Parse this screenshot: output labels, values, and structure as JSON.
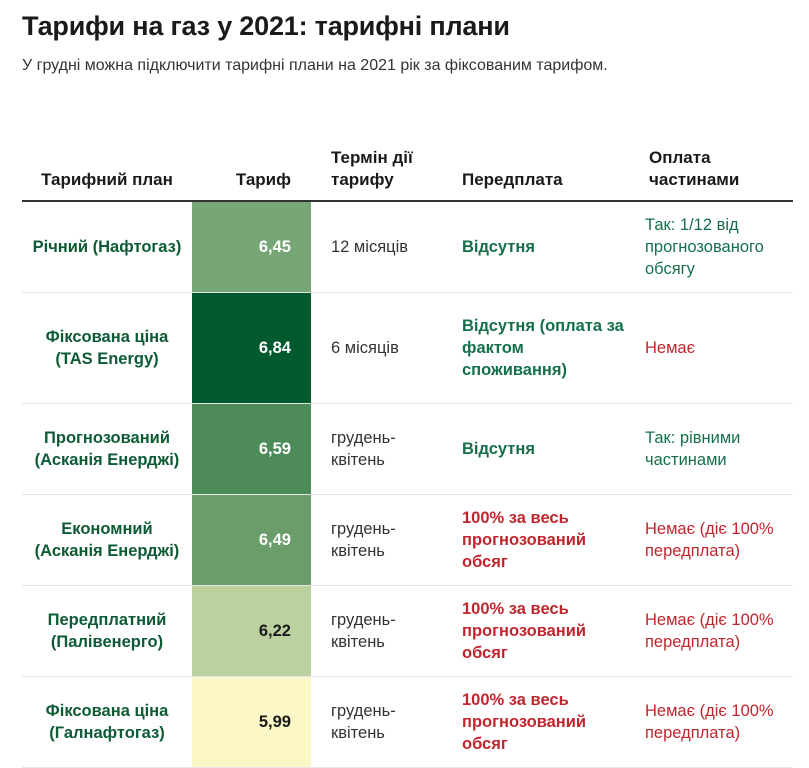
{
  "title": "Тарифи на газ у 2021: тарифні плани",
  "subtitle": "У грудні можна підключити тарифні плани на 2021 рік за фіксованим тарифом.",
  "columns": {
    "plan": "Тарифний план",
    "tariff": "Тариф",
    "term": "Термін дії тарифу",
    "prepayment": "Передплата",
    "installments": "Оплата частинами"
  },
  "colors": {
    "plan_text": "#0d5b34",
    "positive": "#15704a",
    "negative": "#c0262d"
  },
  "rows": [
    {
      "plan": "Річний (Нафтогаз)",
      "tariff": "6,45",
      "tariff_bg": "#77a677",
      "tariff_fg": "#ffffff",
      "term": "12 місяців",
      "prepayment": "Відсутня",
      "prepayment_status": "green",
      "installments": "Так: 1/12 від прогнозованого обсягу",
      "installments_status": "green",
      "height": 91
    },
    {
      "plan": "Фіксована ціна (TAS Energy)",
      "tariff": "6,84",
      "tariff_bg": "#005a2e",
      "tariff_fg": "#ffffff",
      "term": "6 місяців",
      "prepayment": "Відсутня (оплата за фактом споживання)",
      "prepayment_status": "green",
      "installments": "Немає",
      "installments_status": "red",
      "height": 111
    },
    {
      "plan": "Прогнозований (Асканія Енерджі)",
      "tariff": "6,59",
      "tariff_bg": "#4d8b59",
      "tariff_fg": "#ffffff",
      "term": "грудень-квітень",
      "prepayment": "Відсутня",
      "prepayment_status": "green",
      "installments": "Так: рівними частинами",
      "installments_status": "green",
      "height": 91
    },
    {
      "plan": "Економний (Асканія Енерджі)",
      "tariff": "6,49",
      "tariff_bg": "#6a9d69",
      "tariff_fg": "#ffffff",
      "term": "грудень-квітень",
      "prepayment": "100% за весь прогнозований обсяг",
      "prepayment_status": "red",
      "installments": "Немає (діє 100% передплата)",
      "installments_status": "red",
      "height": 91
    },
    {
      "plan": "Передплатний (Палівенерго)",
      "tariff": "6,22",
      "tariff_bg": "#bcd1a0",
      "tariff_fg": "#1a1a1a",
      "term": "грудень-квітень",
      "prepayment": "100% за весь прогнозований обсяг",
      "prepayment_status": "red",
      "installments": "Немає (діє 100% передплата)",
      "installments_status": "red",
      "height": 91
    },
    {
      "plan": "Фіксована ціна (Галнафтогаз)",
      "tariff": "5,99",
      "tariff_bg": "#fbf7c6",
      "tariff_fg": "#1a1a1a",
      "term": "грудень-квітень",
      "prepayment": "100% за весь прогнозований обсяг",
      "prepayment_status": "red",
      "installments": "Немає (діє 100% передплата)",
      "installments_status": "red",
      "height": 91
    }
  ]
}
